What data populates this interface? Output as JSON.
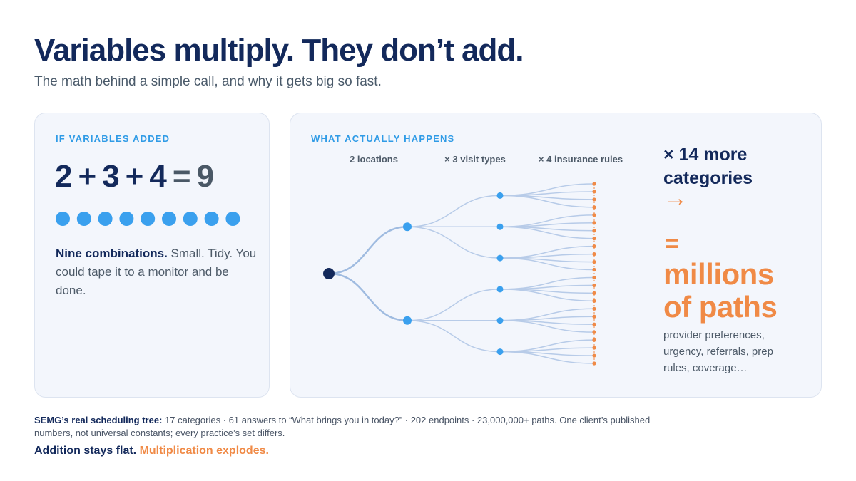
{
  "header": {
    "title": "Variables multiply. They don’t add.",
    "subtitle": "The math behind a simple call, and why it gets big so fast."
  },
  "left": {
    "label": "IF VARIABLES ADDED",
    "equation": {
      "terms": [
        2,
        3,
        4
      ],
      "plus": "+",
      "equals": "=",
      "result": 9
    },
    "lead": "Nine combinations.",
    "body": "Small. Tidy. You could tape it to a monitor and be done."
  },
  "right": {
    "label": "WHAT ACTUALLY HAPPENS",
    "levels": [
      {
        "count": 2,
        "label": "locations"
      },
      {
        "prefix": "×",
        "count": 3,
        "label": "visit types"
      },
      {
        "prefix": "×",
        "count": 4,
        "label": "insurance rules"
      }
    ],
    "more": "× 14 more categories",
    "arrow": "→",
    "equals": "=",
    "result": "millions of paths",
    "note": "provider preferences, urgency, referrals, prep rules, coverage…"
  },
  "footer": {
    "lead": "SEMG’s real scheduling tree:",
    "body": "17 categories · 61 answers to “What brings you in today?” · 202 endpoints · 23,000,000+ paths. One client’s published numbers, not universal constants; every practice’s set differs.",
    "tagline": "Addition stays flat.",
    "tagline_accent": "Multiplication explodes."
  }
}
